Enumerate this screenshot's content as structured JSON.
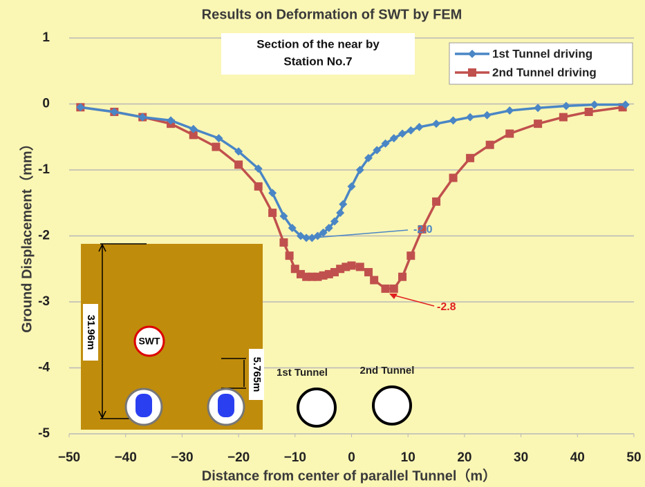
{
  "chart_data": {
    "type": "line",
    "title": "Results on Deformation of SWT by FEM",
    "subtitle": [
      "Section of the near by",
      "Station No.7"
    ],
    "x_label": "Distance from center of parallel Tunnel（m）",
    "y_label": "Ground Displacement（mm）",
    "xlim": [
      -50,
      50
    ],
    "ylim": [
      -5,
      1
    ],
    "xticks": [
      {
        "value": -50,
        "label": "−50"
      },
      {
        "value": -40,
        "label": "−40"
      },
      {
        "value": -30,
        "label": "−30"
      },
      {
        "value": -20,
        "label": "−20"
      },
      {
        "value": -10,
        "label": "−10"
      },
      0,
      10,
      20,
      30,
      40,
      50
    ],
    "yticks": [
      -5,
      -4,
      -3,
      -2,
      -1,
      0,
      1
    ],
    "grid": true,
    "legend": "upper right",
    "series": [
      {
        "name": "1st Tunnel driving",
        "color": "#4a86c5",
        "marker": "diamond",
        "x": [
          -48,
          -42,
          -37,
          -32,
          -28,
          -23.5,
          -20,
          -16.5,
          -14,
          -12,
          -10.5,
          -9,
          -8,
          -7,
          -6,
          -5,
          -4,
          -3,
          -2,
          -1.5,
          0,
          1.5,
          3,
          4.5,
          6,
          7.5,
          9,
          10.5,
          12,
          15,
          18,
          21,
          24,
          28,
          33,
          38,
          43,
          48.5
        ],
        "values": [
          -0.05,
          -0.12,
          -0.2,
          -0.25,
          -0.38,
          -0.52,
          -0.72,
          -0.98,
          -1.35,
          -1.7,
          -1.88,
          -2.0,
          -2.03,
          -2.03,
          -2.0,
          -1.95,
          -1.88,
          -1.78,
          -1.65,
          -1.52,
          -1.25,
          -1.0,
          -0.82,
          -0.7,
          -0.6,
          -0.52,
          -0.45,
          -0.4,
          -0.35,
          -0.3,
          -0.25,
          -0.2,
          -0.17,
          -0.1,
          -0.06,
          -0.03,
          -0.01,
          -0.01
        ]
      },
      {
        "name": "2nd Tunnel driving",
        "color": "#c0504d",
        "marker": "square",
        "x": [
          -48,
          -42,
          -37,
          -32,
          -28,
          -24,
          -20,
          -16.5,
          -14,
          -12,
          -11,
          -10,
          -9,
          -8,
          -7,
          -6,
          -5,
          -4,
          -3,
          -2,
          -1,
          0,
          1.5,
          3,
          4,
          6,
          7.5,
          9,
          10.5,
          12.5,
          15,
          18,
          21,
          24.5,
          28,
          33,
          37.5,
          42,
          48
        ],
        "values": [
          -0.05,
          -0.12,
          -0.2,
          -0.3,
          -0.47,
          -0.65,
          -0.92,
          -1.25,
          -1.65,
          -2.1,
          -2.3,
          -2.5,
          -2.58,
          -2.62,
          -2.62,
          -2.62,
          -2.6,
          -2.58,
          -2.55,
          -2.5,
          -2.47,
          -2.45,
          -2.47,
          -2.55,
          -2.67,
          -2.8,
          -2.8,
          -2.62,
          -2.3,
          -1.9,
          -1.48,
          -1.12,
          -0.82,
          -0.62,
          -0.45,
          -0.3,
          -0.2,
          -0.12,
          -0.05
        ]
      }
    ],
    "annotations": [
      {
        "text": "-2.0",
        "color": "#4a86c5"
      },
      {
        "text": "-2.8",
        "color": "#e02020"
      }
    ],
    "inset_labels": {
      "swt": "SWT",
      "depth": "31.96m",
      "offset": "5.765m",
      "tunnel1": "1st Tunnel",
      "tunnel2": "2nd Tunnel"
    }
  }
}
